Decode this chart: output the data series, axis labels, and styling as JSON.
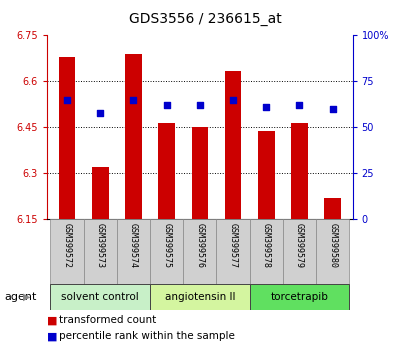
{
  "title": "GDS3556 / 236615_at",
  "samples": [
    "GSM399572",
    "GSM399573",
    "GSM399574",
    "GSM399575",
    "GSM399576",
    "GSM399577",
    "GSM399578",
    "GSM399579",
    "GSM399580"
  ],
  "bar_values": [
    6.68,
    6.32,
    6.69,
    6.465,
    6.45,
    6.635,
    6.44,
    6.465,
    6.22
  ],
  "percentile_values": [
    65,
    58,
    65,
    62,
    62,
    65,
    61,
    62,
    60
  ],
  "bar_color": "#cc0000",
  "percentile_color": "#0000cc",
  "y_min": 6.15,
  "y_max": 6.75,
  "y_ticks": [
    6.15,
    6.3,
    6.45,
    6.6,
    6.75
  ],
  "y_tick_labels": [
    "6.15",
    "6.3",
    "6.45",
    "6.6",
    "6.75"
  ],
  "y2_ticks": [
    0,
    25,
    50,
    75,
    100
  ],
  "y2_tick_labels": [
    "0",
    "25",
    "50",
    "75",
    "100%"
  ],
  "groups": [
    {
      "label": "solvent control",
      "indices": [
        0,
        1,
        2
      ],
      "color": "#c8f0c8"
    },
    {
      "label": "angiotensin II",
      "indices": [
        3,
        4,
        5
      ],
      "color": "#d4f5a0"
    },
    {
      "label": "torcetrapib",
      "indices": [
        6,
        7,
        8
      ],
      "color": "#60e060"
    }
  ],
  "agent_label": "agent",
  "legend_bar_label": "transformed count",
  "legend_pct_label": "percentile rank within the sample",
  "bar_width": 0.5,
  "sample_box_color": "#d0d0d0"
}
